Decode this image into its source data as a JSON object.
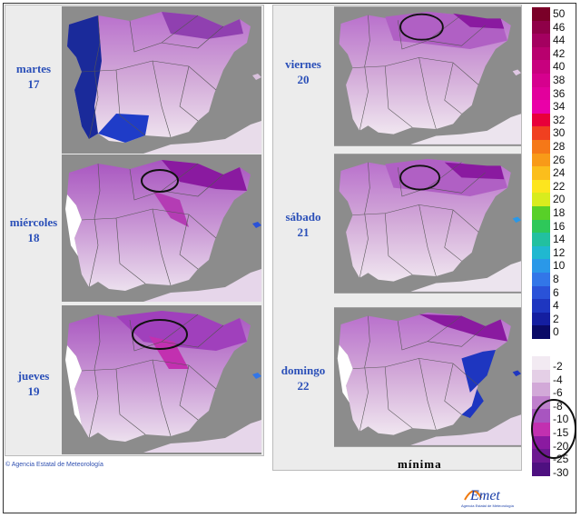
{
  "days": [
    {
      "weekday": "martes",
      "day": "17",
      "circled": false
    },
    {
      "weekday": "miércoles",
      "day": "18",
      "circled": true
    },
    {
      "weekday": "jueves",
      "day": "19",
      "circled": true
    },
    {
      "weekday": "viernes",
      "day": "20",
      "circled": true
    },
    {
      "weekday": "sábado",
      "day": "21",
      "circled": true
    },
    {
      "weekday": "domingo",
      "day": "22",
      "circled": false
    }
  ],
  "legend_warm": [
    "50",
    "46",
    "44",
    "42",
    "40",
    "38",
    "36",
    "34",
    "32",
    "30",
    "28",
    "26",
    "24",
    "22",
    "20",
    "18",
    "16",
    "14",
    "12",
    "10",
    "8",
    "6",
    "4",
    "2",
    "0"
  ],
  "legend_warm_colors": [
    "#7a0028",
    "#8f0048",
    "#a40060",
    "#b8006e",
    "#c8007e",
    "#d6008e",
    "#e2009c",
    "#ea00a8",
    "#e8003a",
    "#f04020",
    "#f57818",
    "#f89a18",
    "#fbbe1c",
    "#fde51e",
    "#d8ec1e",
    "#58d028",
    "#2ec85a",
    "#22c0a0",
    "#20b8d0",
    "#2a98e8",
    "#3276e8",
    "#2a52d8",
    "#1e36c0",
    "#141ea0",
    "#0a0a66"
  ],
  "legend_cold": [
    "-2",
    "-4",
    "-6",
    "-8",
    "-10",
    "-15",
    "-20",
    "-25",
    "-30"
  ],
  "legend_cold_colors": [
    "#f2eaf2",
    "#e4cfe6",
    "#d2a9d8",
    "#bf80cc",
    "#a855c0",
    "#c230b0",
    "#8a1aa0",
    "#6c1890",
    "#4e1080"
  ],
  "copyright": "© Agencia Estatal de Meteorología",
  "caption": "mínima",
  "logo_text": "AEmet",
  "logo_subtext": "Agencia Estatal de Meteorología"
}
